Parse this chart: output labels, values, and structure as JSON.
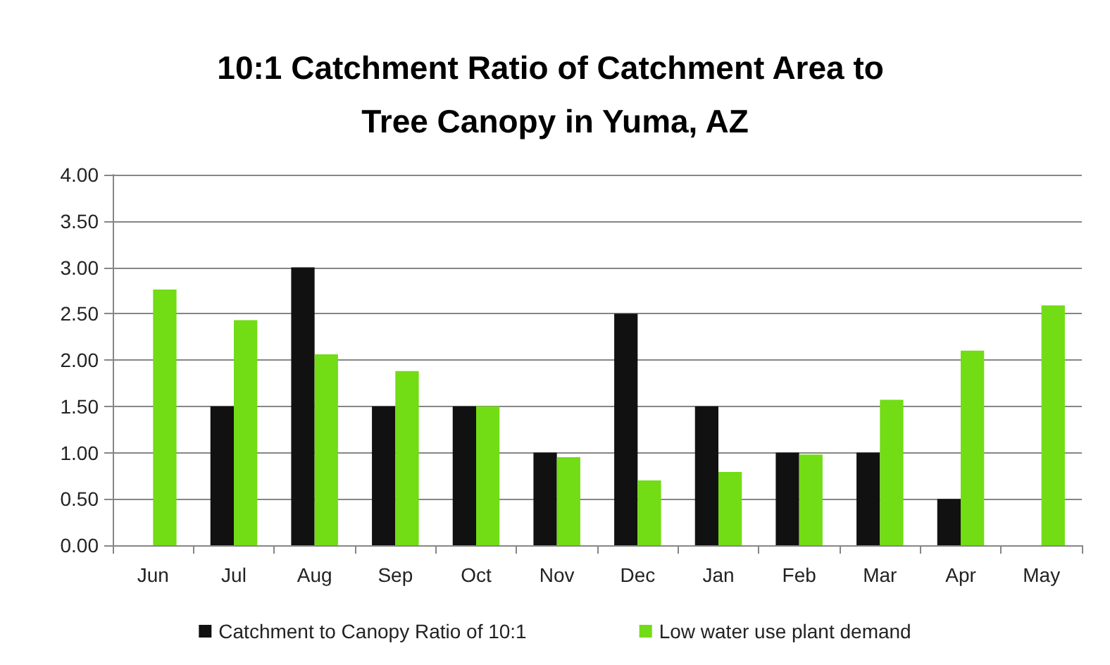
{
  "chart_data": {
    "type": "bar",
    "title": "10:1 Catchment Ratio of Catchment Area to Tree Canopy in Yuma, AZ",
    "categories": [
      "Jun",
      "Jul",
      "Aug",
      "Sep",
      "Oct",
      "Nov",
      "Dec",
      "Jan",
      "Feb",
      "Mar",
      "Apr",
      "May"
    ],
    "series": [
      {
        "name": "Catchment to Canopy Ratio of 10:1",
        "color": "#111111",
        "values": [
          null,
          1.5,
          3.0,
          1.5,
          1.5,
          1.0,
          2.5,
          1.5,
          1.0,
          1.0,
          0.5,
          null
        ]
      },
      {
        "name": "Low water use plant demand",
        "color": "#72dc14",
        "values": [
          2.76,
          2.43,
          2.06,
          1.88,
          1.5,
          0.95,
          0.7,
          0.79,
          0.98,
          1.57,
          2.1,
          2.59
        ]
      }
    ],
    "ylim": [
      0,
      4
    ],
    "yticks": [
      {
        "value": 0,
        "label": "0.00"
      },
      {
        "value": 0.5,
        "label": "0.50"
      },
      {
        "value": 1,
        "label": "1.00"
      },
      {
        "value": 1.5,
        "label": "1.50"
      },
      {
        "value": 2,
        "label": "2.00"
      },
      {
        "value": 2.5,
        "label": "2.50"
      },
      {
        "value": 3,
        "label": "3.00"
      },
      {
        "value": 3.5,
        "label": "3.50"
      },
      {
        "value": 4,
        "label": "4.00"
      }
    ],
    "grid": "y",
    "legend": "bottom"
  }
}
